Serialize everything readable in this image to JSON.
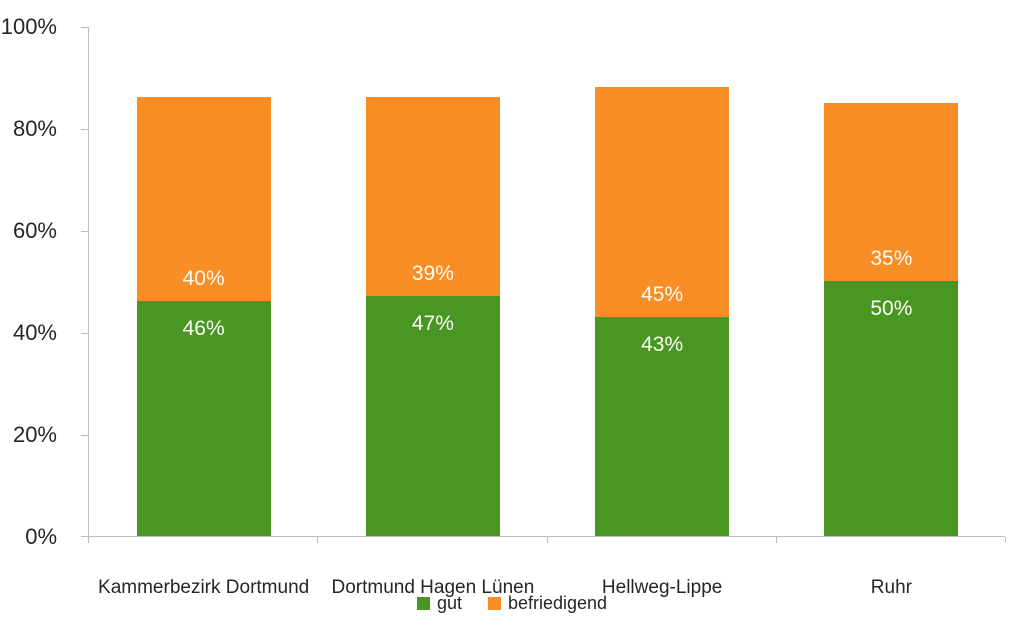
{
  "chart_data": {
    "type": "bar",
    "stacked": true,
    "orientation": "vertical",
    "title": "",
    "xlabel": "",
    "ylabel": "",
    "categories": [
      "Kammerbezirk Dortmund",
      "Dortmund Hagen Lünen",
      "Hellweg-Lippe",
      "Ruhr"
    ],
    "series": [
      {
        "name": "gut",
        "color": "#4a9623",
        "values": [
          46,
          47,
          43,
          50
        ],
        "labels": [
          "46%",
          "47%",
          "43%",
          "50%"
        ]
      },
      {
        "name": "befriedigend",
        "color": "#f98d26",
        "values": [
          40,
          39,
          45,
          35
        ],
        "labels": [
          "40%",
          "39%",
          "45%",
          "35%"
        ]
      }
    ],
    "totals": [
      86,
      86,
      88,
      85
    ],
    "y_axis": {
      "min": 0,
      "max": 100,
      "tick_labels": [
        "0%",
        "20%",
        "40%",
        "60%",
        "80%",
        "100%"
      ]
    },
    "grid": false,
    "legend_position": "bottom",
    "legend": [
      {
        "label": "gut",
        "color": "#4a9623"
      },
      {
        "label": "befriedigend",
        "color": "#f98d26"
      }
    ]
  },
  "style": {
    "axis_line_color": "#bfbfbf",
    "axis_text_color": "#262626",
    "data_label_color": "#fdfdf5",
    "background": "#ffffff"
  }
}
